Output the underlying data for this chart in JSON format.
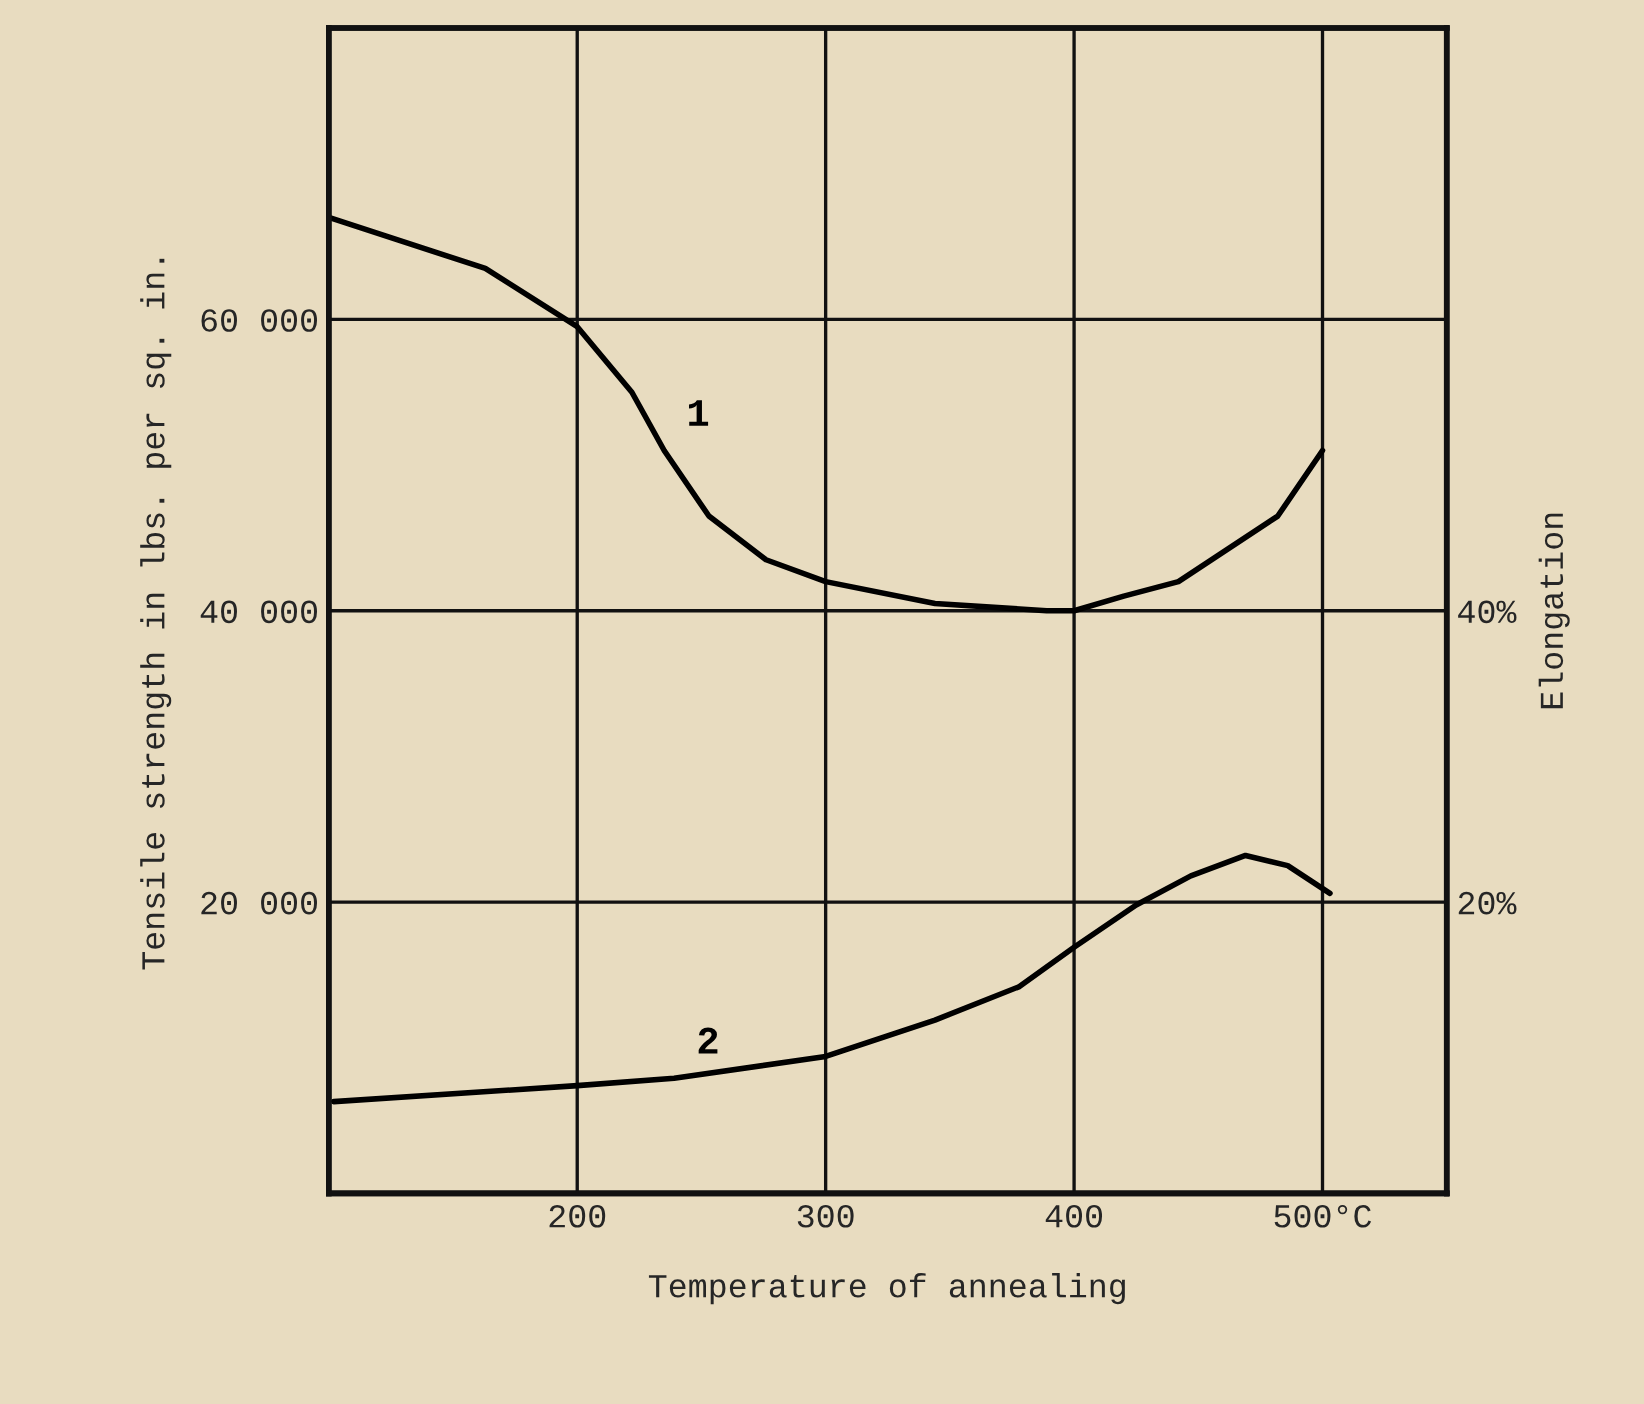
{
  "chart_data": {
    "type": "line",
    "xlabel": "Temperature of annealing",
    "ylabel": "Tensile strength in lbs. per sq. in.",
    "y2label": "Elongation",
    "xlim": [
      100,
      550
    ],
    "xticks": [
      200,
      300,
      400,
      {
        "value": 500,
        "label": "500°C"
      }
    ],
    "ylim": [
      0,
      80000
    ],
    "yticks": [
      {
        "value": 20000,
        "label": "20 000"
      },
      {
        "value": 40000,
        "label": "40 000"
      },
      {
        "value": 60000,
        "label": "60 000"
      }
    ],
    "y2lim": [
      0,
      80
    ],
    "y2ticks": [
      {
        "value": 20,
        "label": "20%"
      },
      {
        "value": 40,
        "label": "40%"
      }
    ],
    "grid": true,
    "series": [
      {
        "name": "1",
        "color": "#000000",
        "x": [
          100,
          163,
          200,
          222,
          235,
          253,
          276,
          300,
          344,
          389,
          400,
          420,
          442,
          482,
          500
        ],
        "values": [
          67000,
          63500,
          59500,
          55000,
          51000,
          46500,
          43500,
          42000,
          40500,
          40000,
          40000,
          41000,
          42000,
          46500,
          51000
        ]
      },
      {
        "name": "2",
        "color": "#000000",
        "axis": "y2",
        "x": [
          102,
          200,
          239,
          300,
          344,
          378,
          400,
          425,
          447,
          469,
          486,
          503
        ],
        "values": [
          6.3,
          7.4,
          7.9,
          9.4,
          11.9,
          14.2,
          16.9,
          19.8,
          21.8,
          23.2,
          22.5,
          20.6
        ]
      }
    ]
  }
}
